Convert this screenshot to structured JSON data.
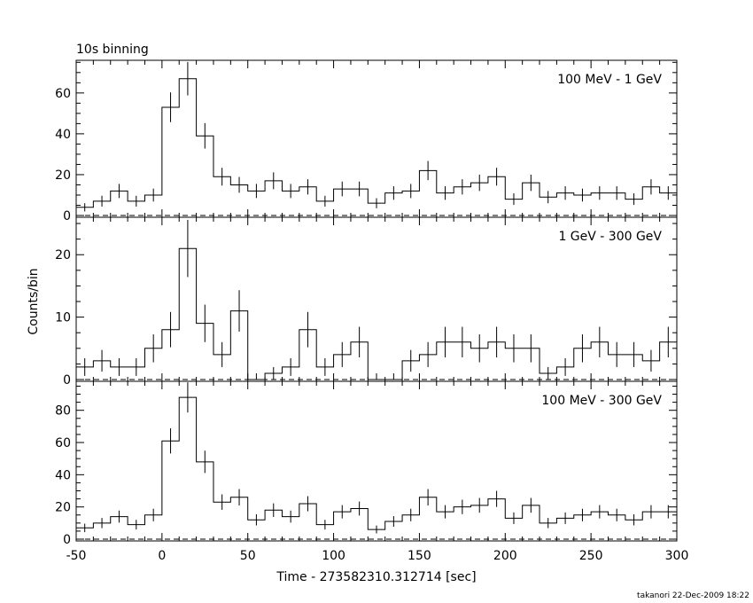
{
  "header": {
    "binning_label": "10s binning"
  },
  "footer": {
    "credit": "takanori 22-Dec-2009 18:22"
  },
  "chart_data": [
    {
      "type": "line",
      "title": "100 MeV - 1 GeV",
      "bin_width": 10,
      "x": [
        -50,
        -40,
        -30,
        -20,
        -10,
        0,
        10,
        20,
        30,
        40,
        50,
        60,
        70,
        80,
        90,
        100,
        110,
        120,
        130,
        140,
        150,
        160,
        170,
        180,
        190,
        200,
        210,
        220,
        230,
        240,
        250,
        260,
        270,
        280,
        290
      ],
      "values": [
        4,
        7,
        12,
        7,
        10,
        53,
        67,
        39,
        19,
        15,
        12,
        17,
        12,
        14,
        7,
        13,
        13,
        6,
        11,
        12,
        22,
        11,
        14,
        16,
        19,
        8,
        16,
        9,
        11,
        10,
        11,
        11,
        8,
        14,
        11
      ],
      "xlim": [
        -50,
        300
      ],
      "ylim": [
        0,
        76
      ],
      "yticks": [
        0,
        20,
        40,
        60
      ]
    },
    {
      "type": "line",
      "title": "1 GeV - 300 GeV",
      "bin_width": 10,
      "ylabel": "Counts/bin",
      "x": [
        -50,
        -40,
        -30,
        -20,
        -10,
        0,
        10,
        20,
        30,
        40,
        50,
        60,
        70,
        80,
        90,
        100,
        110,
        120,
        130,
        140,
        150,
        160,
        170,
        180,
        190,
        200,
        210,
        220,
        230,
        240,
        250,
        260,
        270,
        280,
        290
      ],
      "values": [
        2,
        3,
        2,
        2,
        5,
        8,
        21,
        9,
        4,
        11,
        0,
        1,
        2,
        8,
        2,
        4,
        6,
        0,
        0,
        3,
        4,
        6,
        6,
        5,
        6,
        5,
        5,
        1,
        2,
        5,
        6,
        4,
        4,
        3,
        6
      ],
      "xlim": [
        -50,
        300
      ],
      "ylim": [
        0,
        26
      ],
      "yticks": [
        0,
        10,
        20
      ]
    },
    {
      "type": "line",
      "title": "100 MeV - 300 GeV",
      "bin_width": 10,
      "xlabel": "Time - 273582310.312714 [sec]",
      "x": [
        -50,
        -40,
        -30,
        -20,
        -10,
        0,
        10,
        20,
        30,
        40,
        50,
        60,
        70,
        80,
        90,
        100,
        110,
        120,
        130,
        140,
        150,
        160,
        170,
        180,
        190,
        200,
        210,
        220,
        230,
        240,
        250,
        260,
        270,
        280,
        290
      ],
      "values": [
        7,
        10,
        14,
        9,
        15,
        61,
        88,
        48,
        23,
        26,
        12,
        18,
        14,
        22,
        9,
        17,
        19,
        6,
        11,
        15,
        26,
        17,
        20,
        21,
        25,
        13,
        21,
        10,
        13,
        15,
        17,
        15,
        12,
        17,
        17
      ],
      "xlim": [
        -50,
        300
      ],
      "xticks": [
        -50,
        0,
        50,
        100,
        150,
        200,
        250,
        300
      ],
      "ylim": [
        0,
        98
      ],
      "yticks": [
        0,
        20,
        40,
        60,
        80
      ]
    }
  ]
}
